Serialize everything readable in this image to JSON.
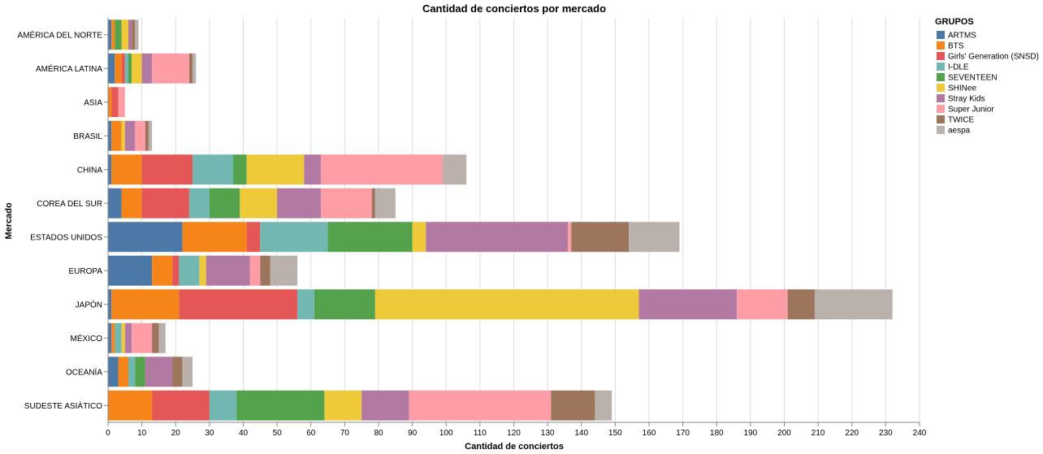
{
  "chart_data": {
    "type": "bar",
    "orientation": "horizontal",
    "stacked": true,
    "title": "Cantidad de conciertos por mercado",
    "xlabel": "Cantidad de conciertos",
    "ylabel": "Mercado",
    "xlim": [
      0,
      240
    ],
    "xticks": [
      0,
      10,
      20,
      30,
      40,
      50,
      60,
      70,
      80,
      90,
      100,
      110,
      120,
      130,
      140,
      150,
      160,
      170,
      180,
      190,
      200,
      210,
      220,
      230,
      240
    ],
    "grid": true,
    "legend": {
      "title": "GRUPOS",
      "placement": "top-right"
    },
    "categories": [
      "AMÉRICA DEL NORTE",
      "AMÉRICA LATINA",
      "ASIA",
      "BRASIL",
      "CHINA",
      "COREA DEL SUR",
      "ESTADOS UNIDOS",
      "EUROPA",
      "JAPÓN",
      "MÉXICO",
      "OCEANÍA",
      "SUDESTE ASIÁTICO"
    ],
    "series": [
      {
        "name": "ARTMS",
        "color": "#4c78a8",
        "values": [
          1,
          2,
          0,
          1,
          1,
          4,
          22,
          13,
          1,
          1,
          3,
          0
        ]
      },
      {
        "name": "BTS",
        "color": "#f58518",
        "values": [
          1,
          2,
          1,
          3,
          9,
          6,
          19,
          6,
          20,
          1,
          3,
          13
        ]
      },
      {
        "name": "Girls' Generation (SNSD)",
        "color": "#e45756",
        "values": [
          0,
          1,
          2,
          0,
          15,
          14,
          4,
          2,
          35,
          0,
          0,
          17
        ]
      },
      {
        "name": "I-DLE",
        "color": "#72b7b2",
        "values": [
          0,
          1,
          0,
          0,
          12,
          6,
          20,
          6,
          5,
          2,
          2,
          8
        ]
      },
      {
        "name": "SEVENTEEN",
        "color": "#54a24b",
        "values": [
          2,
          1,
          0,
          0,
          4,
          9,
          25,
          0,
          18,
          0,
          3,
          26
        ]
      },
      {
        "name": "SHINee",
        "color": "#eeca3b",
        "values": [
          2,
          3,
          0,
          1,
          17,
          11,
          4,
          2,
          78,
          1,
          0,
          11
        ]
      },
      {
        "name": "Stray Kids",
        "color": "#b279a2",
        "values": [
          1,
          3,
          0,
          3,
          5,
          13,
          42,
          13,
          29,
          2,
          8,
          14
        ]
      },
      {
        "name": "Super Junior",
        "color": "#ff9da6",
        "values": [
          0,
          11,
          2,
          3,
          36,
          15,
          1,
          3,
          15,
          6,
          0,
          42
        ]
      },
      {
        "name": "TWICE",
        "color": "#9d755d",
        "values": [
          1,
          1,
          0,
          1,
          0,
          1,
          17,
          3,
          8,
          2,
          3,
          13
        ]
      },
      {
        "name": "aespa",
        "color": "#bab0ac",
        "values": [
          1,
          1,
          0,
          1,
          7,
          6,
          15,
          8,
          23,
          2,
          3,
          5
        ]
      }
    ]
  }
}
